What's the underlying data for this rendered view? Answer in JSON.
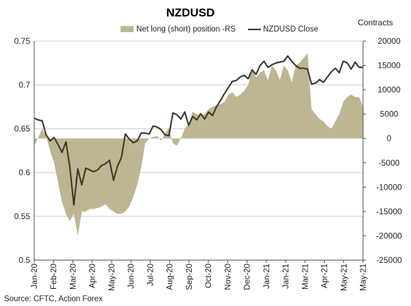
{
  "chart_data": {
    "type": "line",
    "title": "NZDUSD",
    "right_axis_label": "Contracts",
    "source": "Source: CFTC, Action Forex",
    "x_tick_labels": [
      "Jan-20",
      "Feb-20",
      "Mar-20",
      "Apr-20",
      "May-20",
      "Jun-20",
      "Jul-20",
      "Aug-20",
      "Sep-20",
      "Oct-20",
      "Nov-20",
      "Dec-20",
      "Jan-21",
      "Jan-21",
      "Mar-21",
      "Apr-21",
      "May-21",
      "May-21"
    ],
    "ylim_left": [
      0.5,
      0.75
    ],
    "yticks_left": [
      "0.5",
      "0.55",
      "0.6",
      "0.65",
      "0.7",
      "0.75"
    ],
    "ylim_right": [
      -25000,
      20000
    ],
    "yticks_right": [
      "-25000",
      "-20000",
      "-15000",
      "-10000",
      "-5000",
      "0",
      "5000",
      "10000",
      "15000",
      "20000"
    ],
    "grid": true,
    "legend_position": "top",
    "series": [
      {
        "name": "Net long (short) position -RS",
        "type": "area",
        "axis": "right",
        "color": "#beb592",
        "values": [
          -1500,
          200,
          2000,
          500,
          -2500,
          -5000,
          -9000,
          -13000,
          -15500,
          -17000,
          -15500,
          -20000,
          -15000,
          -15000,
          -14500,
          -14500,
          -14300,
          -14000,
          -13500,
          -14500,
          -15000,
          -15500,
          -15500,
          -15000,
          -14000,
          -12000,
          -9500,
          -6000,
          -1000,
          0,
          300,
          500,
          -500,
          1000,
          2200,
          -1000,
          -1500,
          0,
          2000,
          3000,
          5500,
          5000,
          4800,
          5000,
          6000,
          6500,
          6800,
          7000,
          7500,
          9000,
          9500,
          8500,
          9000,
          9800,
          11000,
          14500,
          12500,
          13500,
          14000,
          12000,
          15000,
          14000,
          12000,
          15000,
          14000,
          11500,
          15000,
          15500,
          16500,
          17500,
          6000,
          5000,
          4000,
          3500,
          2500,
          2000,
          3500,
          5000,
          7500,
          8500,
          9000,
          8500,
          8500,
          6500
        ],
        "min": -20000,
        "max": 17500
      },
      {
        "name": "NZDUSD Close",
        "type": "line",
        "axis": "left",
        "color": "#3d3a2a",
        "values": [
          0.662,
          0.66,
          0.659,
          0.643,
          0.636,
          0.64,
          0.632,
          0.623,
          0.635,
          0.606,
          0.563,
          0.604,
          0.586,
          0.605,
          0.603,
          0.601,
          0.603,
          0.608,
          0.61,
          0.614,
          0.591,
          0.607,
          0.617,
          0.644,
          0.638,
          0.634,
          0.636,
          0.645,
          0.645,
          0.644,
          0.653,
          0.652,
          0.649,
          0.643,
          0.642,
          0.668,
          0.666,
          0.661,
          0.669,
          0.654,
          0.664,
          0.66,
          0.667,
          0.661,
          0.669,
          0.665,
          0.675,
          0.682,
          0.69,
          0.697,
          0.704,
          0.705,
          0.709,
          0.711,
          0.707,
          0.717,
          0.712,
          0.722,
          0.727,
          0.72,
          0.723,
          0.725,
          0.726,
          0.727,
          0.733,
          0.727,
          0.722,
          0.719,
          0.719,
          0.718,
          0.701,
          0.702,
          0.706,
          0.703,
          0.709,
          0.715,
          0.719,
          0.714,
          0.727,
          0.725,
          0.718,
          0.726,
          0.72,
          0.72
        ],
        "min": 0.563,
        "max": 0.733
      }
    ]
  }
}
